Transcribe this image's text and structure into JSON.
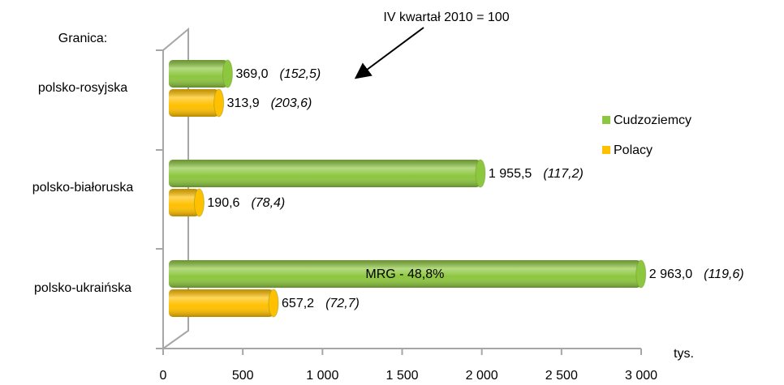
{
  "chart_data": {
    "type": "bar",
    "orientation": "horizontal",
    "annotation": "IV kwartał 2010 = 100",
    "y_axis_title": "Granica:",
    "x_axis_unit": "tys.",
    "inner_label": "MRG - 48,8%",
    "categories": [
      "polsko-rosyjska",
      "polsko-białoruska",
      "polsko-ukraińska"
    ],
    "series": [
      {
        "name": "Cudzoziemcy",
        "color": "#8dc63f",
        "values": [
          369.0,
          1955.5,
          2963.0
        ],
        "value_labels": [
          "369,0",
          "1 955,5",
          "2 963,0"
        ],
        "index_labels": [
          "(152,5)",
          "(117,2)",
          "(119,6)"
        ]
      },
      {
        "name": "Polacy",
        "color": "#ffc000",
        "values": [
          313.9,
          190.6,
          657.2
        ],
        "value_labels": [
          "313,9",
          "190,6",
          "657,2"
        ],
        "index_labels": [
          "(203,6)",
          "(78,4)",
          "(72,7)"
        ]
      }
    ],
    "xlim": [
      0,
      3000
    ],
    "xticks": [
      0,
      500,
      {
        "value": 1000,
        "label": "1 000"
      },
      {
        "value": 1500,
        "label": "1 500"
      },
      {
        "value": 2000,
        "label": "2 000"
      },
      {
        "value": 2500,
        "label": "2 500"
      },
      {
        "value": 3000,
        "label": "3 000"
      }
    ],
    "legend": "right"
  }
}
